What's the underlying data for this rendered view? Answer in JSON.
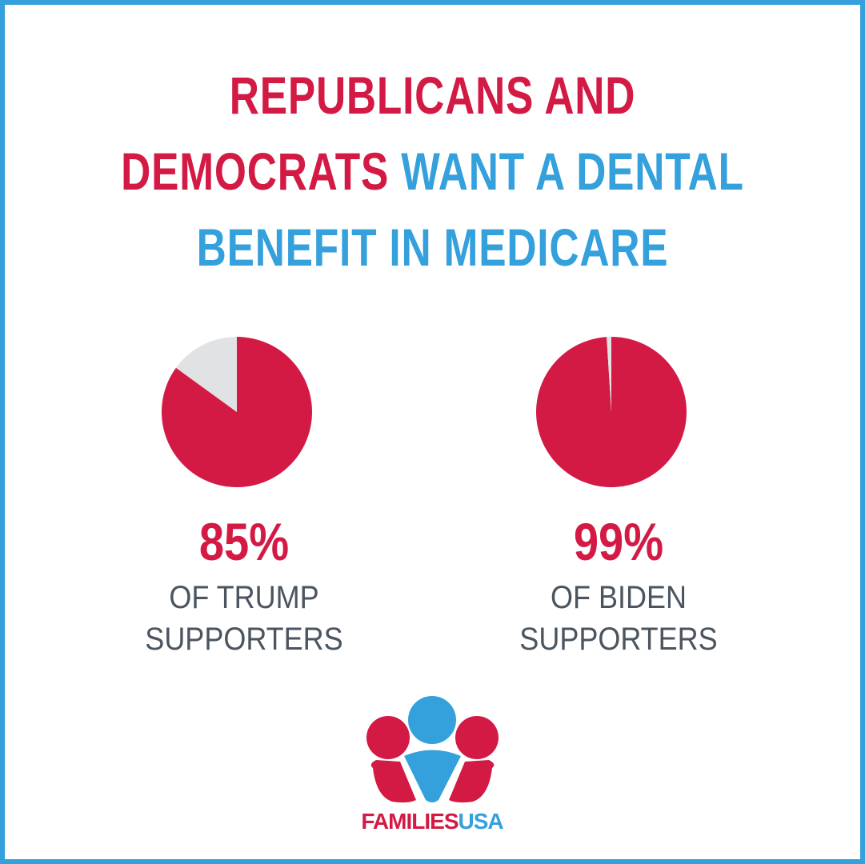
{
  "title": {
    "red": [
      "REPUBLICANS AND",
      "DEMOCRATS"
    ],
    "blue": [
      "WANT A DENTAL",
      "BENEFIT IN MEDICARE"
    ],
    "red_color": "#d31a45",
    "blue_color": "#34a0dc"
  },
  "chart_data": [
    {
      "type": "pie",
      "values": [
        85,
        15
      ],
      "value_labels": [
        "85%",
        null
      ],
      "colors": [
        "#d31a45",
        "#e1e2e3"
      ],
      "caption": [
        "OF TRUMP",
        "SUPPORTERS"
      ]
    },
    {
      "type": "pie",
      "values": [
        99,
        1
      ],
      "value_labels": [
        "99%",
        null
      ],
      "colors": [
        "#d31a45",
        "#e1e2e3"
      ],
      "caption": [
        "OF BIDEN",
        "SUPPORTERS"
      ]
    }
  ],
  "logo": {
    "parts": [
      "FAMILIES",
      "USA"
    ]
  }
}
